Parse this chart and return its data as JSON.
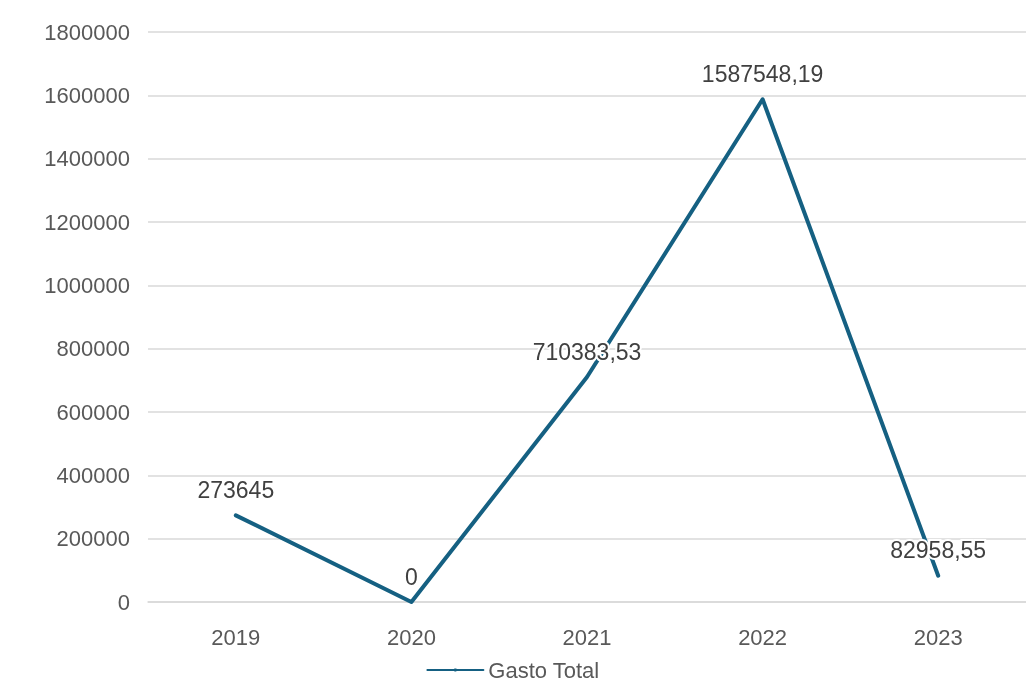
{
  "chart_data": {
    "type": "line",
    "categories": [
      "2019",
      "2020",
      "2021",
      "2022",
      "2023"
    ],
    "series": [
      {
        "name": "Gasto Total",
        "color": "#156082",
        "values": [
          273645,
          0,
          710383.53,
          1587548.19,
          82958.55
        ],
        "value_labels": [
          "273645",
          "0",
          "710383,53",
          "1587548,19",
          "82958,55"
        ]
      }
    ],
    "ylim": [
      0,
      1800000
    ],
    "yticks": [
      0,
      200000,
      400000,
      600000,
      800000,
      1000000,
      1200000,
      1400000,
      1600000,
      1800000
    ],
    "grid": "y",
    "legend": "bottom",
    "marker": "none",
    "line_style": "solid"
  }
}
